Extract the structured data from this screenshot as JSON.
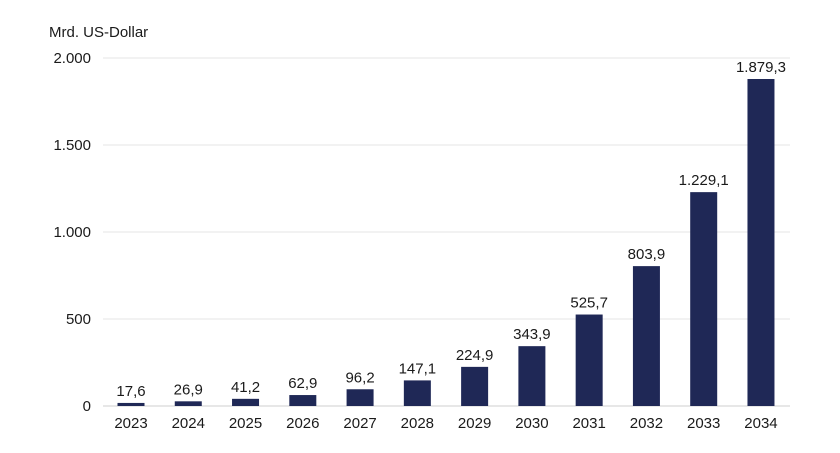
{
  "chart_data": {
    "type": "bar",
    "ylabel": "Mrd. US-Dollar",
    "categories": [
      "2023",
      "2024",
      "2025",
      "2026",
      "2027",
      "2028",
      "2029",
      "2030",
      "2031",
      "2032",
      "2033",
      "2034"
    ],
    "values": [
      17.6,
      26.9,
      41.2,
      62.9,
      96.2,
      147.1,
      224.9,
      343.9,
      525.7,
      803.9,
      1229.1,
      1879.3
    ],
    "value_labels": [
      "17,6",
      "26,9",
      "41,2",
      "62,9",
      "96,2",
      "147,1",
      "224,9",
      "343,9",
      "525,7",
      "803,9",
      "1.229,1",
      "1.879,3"
    ],
    "yticks": [
      0,
      500,
      1000,
      1500,
      2000
    ],
    "ytick_labels": [
      "0",
      "500",
      "1.000",
      "1.500",
      "2.000"
    ],
    "ylim": [
      0,
      2000
    ],
    "grid": true,
    "bar_color": "#1f2856"
  }
}
